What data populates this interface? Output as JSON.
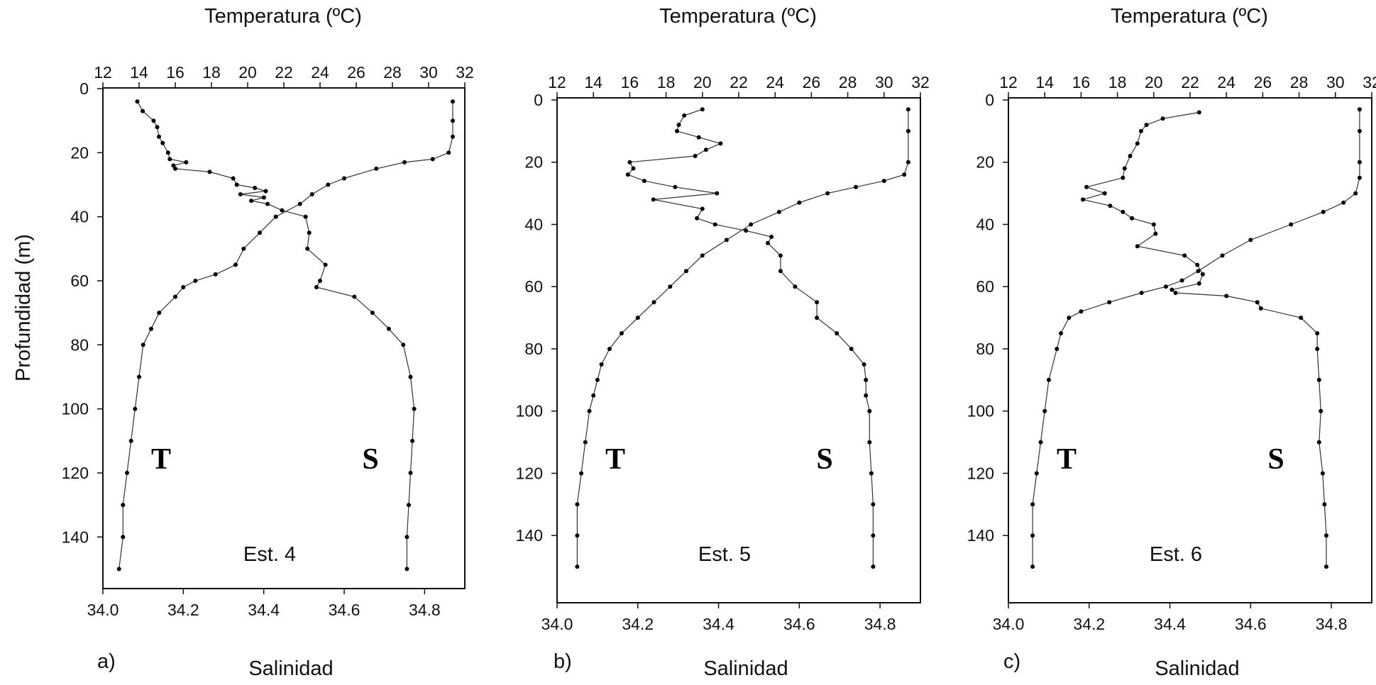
{
  "chart_data": [
    {
      "type": "line",
      "panel": "a)",
      "station": "Est. 4",
      "top_axis_title": "Temperatura (ºC)",
      "bottom_axis_title": "Salinidad",
      "left_axis_title": "Profundidad (m)",
      "temperature_ticks": [
        "12",
        "14",
        "16",
        "18",
        "20",
        "22",
        "24",
        "26",
        "28",
        "30",
        "32"
      ],
      "salinity_ticks": [
        "34.0",
        "34.2",
        "34.4",
        "34.6",
        "34.8"
      ],
      "depth_ticks": [
        "0",
        "20",
        "40",
        "60",
        "80",
        "100",
        "120",
        "140"
      ],
      "temperature_range": [
        12,
        32
      ],
      "salinity_range": [
        34.0,
        34.9
      ],
      "depth_range": [
        0,
        155
      ],
      "T_label": "T",
      "S_label": "S",
      "series": [
        {
          "name": "Temperatura",
          "depth": [
            4,
            7,
            10,
            12,
            15,
            17,
            20,
            22,
            23,
            24,
            25,
            26,
            28,
            30,
            31,
            32,
            33,
            34,
            35,
            36,
            38,
            40,
            45,
            50,
            55,
            60,
            62,
            65,
            70,
            75,
            80,
            90,
            100,
            110,
            120,
            130,
            140,
            150
          ],
          "values": [
            13.9,
            14.2,
            14.8,
            15.0,
            15.1,
            15.3,
            15.6,
            15.7,
            16.6,
            15.9,
            16.0,
            17.9,
            19.2,
            19.4,
            20.4,
            21.0,
            19.6,
            20.9,
            20.2,
            21.1,
            21.9,
            23.2,
            23.4,
            23.3,
            24.3,
            24.0,
            23.8,
            25.9,
            26.9,
            27.8,
            28.6,
            29.0,
            29.2,
            29.1,
            29.0,
            28.9,
            28.8,
            28.8
          ]
        },
        {
          "name": "Salinidad",
          "depth": [
            4,
            10,
            15,
            20,
            22,
            23,
            25,
            28,
            30,
            33,
            36,
            40,
            45,
            50,
            55,
            58,
            60,
            62,
            65,
            70,
            75,
            80,
            90,
            100,
            110,
            120,
            130,
            140,
            150
          ],
          "values": [
            34.87,
            34.87,
            34.87,
            34.86,
            34.82,
            34.75,
            34.68,
            34.6,
            34.56,
            34.52,
            34.49,
            34.43,
            34.39,
            34.35,
            34.33,
            34.28,
            34.23,
            34.2,
            34.18,
            34.14,
            34.12,
            34.1,
            34.09,
            34.08,
            34.07,
            34.06,
            34.05,
            34.05,
            34.04
          ]
        }
      ]
    },
    {
      "type": "line",
      "panel": "b)",
      "station": "Est. 5",
      "top_axis_title": "Temperatura (ºC)",
      "bottom_axis_title": "Salinidad",
      "temperature_ticks": [
        "12",
        "14",
        "16",
        "18",
        "20",
        "22",
        "24",
        "26",
        "28",
        "30",
        "32"
      ],
      "salinity_ticks": [
        "34.0",
        "34.2",
        "34.4",
        "34.6",
        "34.8"
      ],
      "depth_ticks": [
        "0",
        "20",
        "40",
        "60",
        "80",
        "100",
        "120",
        "140"
      ],
      "temperature_range": [
        12,
        32
      ],
      "salinity_range": [
        34.0,
        34.9
      ],
      "depth_range": [
        0,
        155
      ],
      "T_label": "T",
      "S_label": "S",
      "series": [
        {
          "name": "Temperatura",
          "depth": [
            3,
            5,
            8,
            10,
            12,
            14,
            16,
            18,
            20,
            22,
            24,
            26,
            28,
            30,
            32,
            35,
            38,
            40,
            42,
            44,
            46,
            50,
            55,
            60,
            65,
            70,
            75,
            80,
            85,
            90,
            95,
            100,
            110,
            120,
            130,
            140,
            150
          ],
          "values": [
            20.0,
            19.0,
            18.7,
            18.6,
            19.8,
            21.0,
            20.2,
            19.6,
            16.0,
            16.2,
            15.9,
            16.8,
            18.5,
            20.8,
            17.3,
            20.0,
            19.7,
            20.7,
            22.4,
            23.8,
            23.6,
            24.3,
            24.3,
            25.1,
            26.3,
            26.3,
            27.4,
            28.2,
            28.9,
            29.0,
            29.0,
            29.2,
            29.2,
            29.3,
            29.4,
            29.4,
            29.4
          ]
        },
        {
          "name": "Salinidad",
          "depth": [
            3,
            10,
            20,
            24,
            26,
            28,
            30,
            33,
            36,
            40,
            45,
            50,
            55,
            60,
            65,
            70,
            75,
            80,
            85,
            90,
            95,
            100,
            110,
            120,
            130,
            140,
            150
          ],
          "values": [
            34.87,
            34.87,
            34.87,
            34.86,
            34.81,
            34.74,
            34.67,
            34.6,
            34.55,
            34.48,
            34.42,
            34.36,
            34.32,
            34.28,
            34.24,
            34.2,
            34.16,
            34.13,
            34.11,
            34.1,
            34.09,
            34.08,
            34.07,
            34.06,
            34.05,
            34.05,
            34.05
          ]
        }
      ]
    },
    {
      "type": "line",
      "panel": "c)",
      "station": "Est. 6",
      "top_axis_title": "Temperatura (ºC)",
      "bottom_axis_title": "Salinidad",
      "temperature_ticks": [
        "12",
        "14",
        "16",
        "18",
        "20",
        "22",
        "24",
        "26",
        "28",
        "30",
        "32"
      ],
      "salinity_ticks": [
        "34.0",
        "34.2",
        "34.4",
        "34.6",
        "34.8"
      ],
      "depth_ticks": [
        "0",
        "20",
        "40",
        "60",
        "80",
        "100",
        "120",
        "140"
      ],
      "temperature_range": [
        12,
        32
      ],
      "salinity_range": [
        34.0,
        34.9
      ],
      "depth_range": [
        0,
        155
      ],
      "T_label": "T",
      "S_label": "S",
      "series": [
        {
          "name": "Temperatura",
          "depth": [
            4,
            6,
            8,
            10,
            14,
            18,
            22,
            25,
            28,
            30,
            32,
            34,
            36,
            38,
            40,
            43,
            47,
            50,
            53,
            56,
            59,
            61,
            62,
            63,
            65,
            67,
            70,
            75,
            80,
            90,
            100,
            110,
            120,
            130,
            140,
            150
          ],
          "values": [
            22.5,
            20.5,
            19.6,
            19.3,
            19.1,
            18.7,
            18.4,
            18.3,
            16.3,
            17.3,
            16.1,
            17.6,
            18.3,
            18.8,
            20.0,
            20.1,
            19.1,
            21.7,
            22.4,
            22.7,
            22.5,
            21.0,
            21.2,
            24.0,
            25.7,
            25.9,
            28.1,
            29.0,
            29.0,
            29.1,
            29.2,
            29.1,
            29.3,
            29.4,
            29.5,
            29.5
          ]
        },
        {
          "name": "Salinidad",
          "depth": [
            3,
            10,
            20,
            25,
            30,
            33,
            36,
            40,
            45,
            50,
            55,
            58,
            60,
            62,
            65,
            68,
            70,
            75,
            80,
            90,
            100,
            110,
            120,
            130,
            140,
            150
          ],
          "values": [
            34.87,
            34.87,
            34.87,
            34.87,
            34.86,
            34.83,
            34.78,
            34.7,
            34.6,
            34.53,
            34.47,
            34.43,
            34.39,
            34.33,
            34.25,
            34.18,
            34.15,
            34.13,
            34.12,
            34.1,
            34.09,
            34.08,
            34.07,
            34.06,
            34.06,
            34.06
          ]
        }
      ]
    }
  ],
  "colors": {
    "axis": "#111111",
    "line": "#333333",
    "marker": "#000000"
  }
}
